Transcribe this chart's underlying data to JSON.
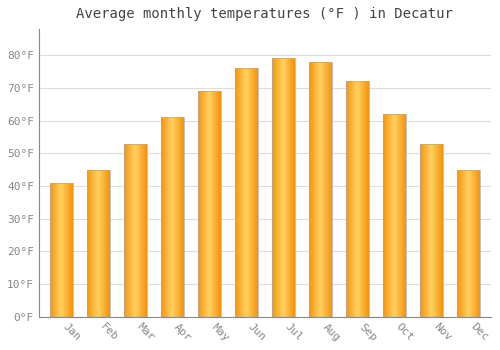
{
  "title": "Average monthly temperatures (°F ) in Decatur",
  "months": [
    "Jan",
    "Feb",
    "Mar",
    "Apr",
    "May",
    "Jun",
    "Jul",
    "Aug",
    "Sep",
    "Oct",
    "Nov",
    "Dec"
  ],
  "values": [
    41,
    45,
    53,
    61,
    69,
    76,
    79,
    78,
    72,
    62,
    53,
    45
  ],
  "bar_color_center": "#FFD060",
  "bar_color_edge": "#F5A000",
  "bar_border_color": "#AAAAAA",
  "ylim": [
    0,
    88
  ],
  "yticks": [
    0,
    10,
    20,
    30,
    40,
    50,
    60,
    70,
    80
  ],
  "ytick_labels": [
    "0°F",
    "10°F",
    "20°F",
    "30°F",
    "40°F",
    "50°F",
    "60°F",
    "70°F",
    "80°F"
  ],
  "plot_bg_color": "#ffffff",
  "fig_bg_color": "#ffffff",
  "grid_color": "#dddddd",
  "title_fontsize": 10,
  "tick_fontsize": 8,
  "xlabel_rotation": -45
}
